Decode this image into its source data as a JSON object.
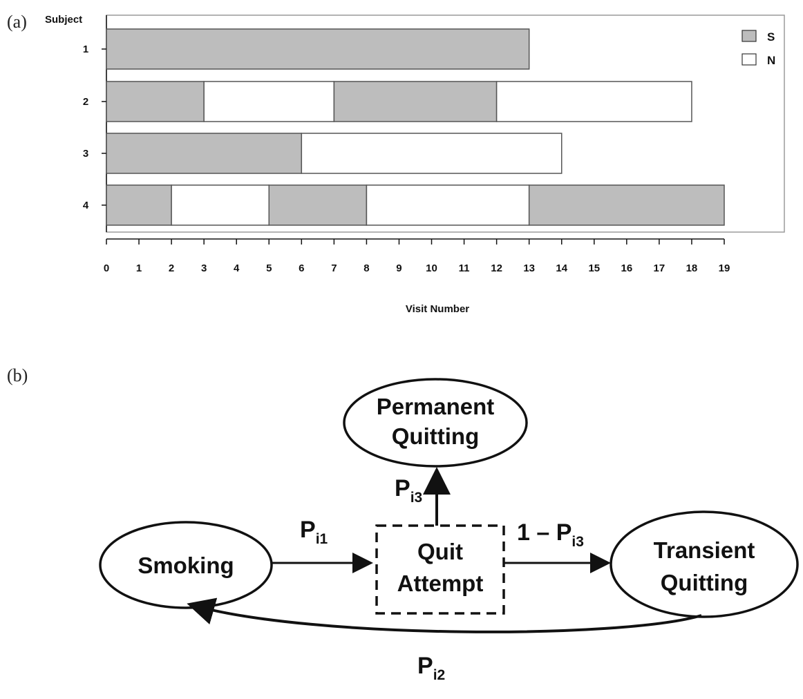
{
  "panel_a": {
    "label": "(a)",
    "chart_data": {
      "type": "bar",
      "orientation": "horizontal-stacked-states",
      "title": "",
      "xlabel": "Visit Number",
      "ylabel": "Subject",
      "xlim": [
        0,
        19
      ],
      "xticks": [
        "0",
        "1",
        "2",
        "3",
        "4",
        "5",
        "6",
        "7",
        "8",
        "9",
        "10",
        "11",
        "12",
        "13",
        "14",
        "15",
        "16",
        "17",
        "18",
        "19"
      ],
      "legend": {
        "placement": "top-right",
        "entries": [
          {
            "key": "S",
            "label": "S",
            "color": "#bdbdbd"
          },
          {
            "key": "N",
            "label": "N",
            "color": "#ffffff"
          }
        ]
      },
      "subjects": [
        {
          "label": "1",
          "segments": [
            {
              "state": "S",
              "start": 0,
              "end": 13
            }
          ]
        },
        {
          "label": "2",
          "segments": [
            {
              "state": "S",
              "start": 0,
              "end": 3
            },
            {
              "state": "N",
              "start": 3,
              "end": 7
            },
            {
              "state": "S",
              "start": 7,
              "end": 12
            },
            {
              "state": "N",
              "start": 12,
              "end": 18
            }
          ]
        },
        {
          "label": "3",
          "segments": [
            {
              "state": "S",
              "start": 0,
              "end": 6
            },
            {
              "state": "N",
              "start": 6,
              "end": 14
            }
          ]
        },
        {
          "label": "4",
          "segments": [
            {
              "state": "S",
              "start": 0,
              "end": 2
            },
            {
              "state": "N",
              "start": 2,
              "end": 5
            },
            {
              "state": "S",
              "start": 5,
              "end": 8
            },
            {
              "state": "N",
              "start": 8,
              "end": 13
            },
            {
              "state": "S",
              "start": 13,
              "end": 19
            }
          ]
        }
      ]
    }
  },
  "panel_b": {
    "label": "(b)",
    "nodes": {
      "permanent_line1": "Permanent",
      "permanent_line2": "Quitting",
      "permanent_color": "#b22222",
      "smoking": "Smoking",
      "quit_line1": "Quit",
      "quit_line2": "Attempt",
      "transient_line1": "Transient",
      "transient_line2": "Quitting"
    },
    "edges": {
      "p_i3_main": "P",
      "p_i3_sub": "i3",
      "p_i1_main": "P",
      "p_i1_sub": "i1",
      "one_minus_main": "1 – P",
      "one_minus_sub": "i3",
      "p_i2_main": "P",
      "p_i2_sub": "i2"
    }
  }
}
